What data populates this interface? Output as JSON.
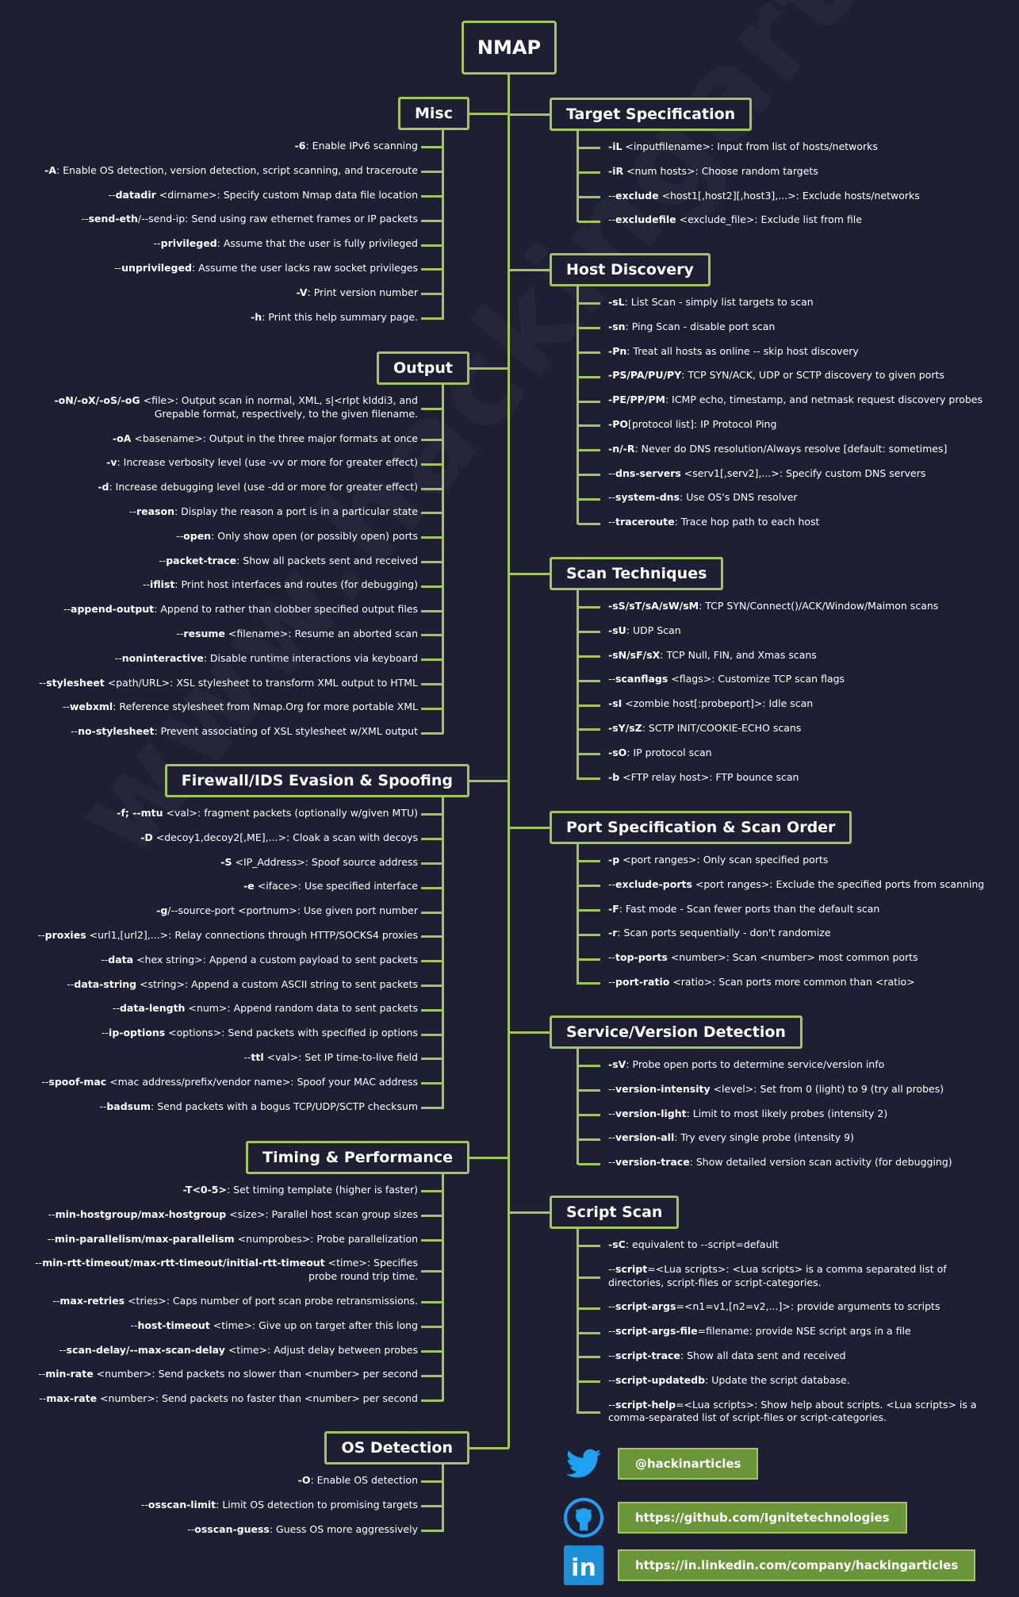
{
  "title": "NMAP",
  "watermark": "www.hackingarticles.in",
  "colors": {
    "background": "#1e1f33",
    "accent": "#a3c65a",
    "badge": "#6a9538"
  },
  "sections": [
    {
      "title": "Misc",
      "side": "left",
      "items": [
        [
          "",
          "-6",
          ": Enable IPv6 scanning"
        ],
        [
          "",
          "-A",
          ": Enable OS detection, version detection, script scanning, and traceroute"
        ],
        [
          "--",
          "datadir",
          " <dirname>: Specify custom Nmap data file location"
        ],
        [
          "--",
          "send-eth",
          "/--send-ip: Send using raw ethernet frames or IP packets"
        ],
        [
          "--",
          "privileged",
          ": Assume that the user is fully privileged"
        ],
        [
          "--",
          "unprivileged",
          ": Assume the user lacks raw socket privileges"
        ],
        [
          "",
          "-V",
          ": Print version number"
        ],
        [
          "",
          "-h",
          ": Print this help summary page."
        ]
      ]
    },
    {
      "title": "Output",
      "side": "left",
      "items": [
        [
          "",
          "-oN/-oX/-oS/-oG",
          " <file>: Output scan in normal, XML, s|<rIpt kIddi3, and Grepable format, respectively, to the given filename."
        ],
        [
          "",
          "-oA",
          " <basename>: Output in the three major formats at once"
        ],
        [
          "",
          "-v",
          ": Increase verbosity level (use -vv or more for greater effect)"
        ],
        [
          "",
          "-d",
          ": Increase debugging level (use -dd or more for greater effect)"
        ],
        [
          "--",
          "reason",
          ": Display the reason a port is in a particular state"
        ],
        [
          "--",
          "open",
          ": Only show open (or possibly open) ports"
        ],
        [
          "--",
          "packet-trace",
          ": Show all packets sent and received"
        ],
        [
          "--",
          "iflist",
          ": Print host interfaces and routes (for debugging)"
        ],
        [
          "--",
          "append-output",
          ": Append to rather than clobber specified output files"
        ],
        [
          "--",
          "resume",
          " <filename>: Resume an aborted scan"
        ],
        [
          "--",
          "noninteractive",
          ": Disable runtime interactions via keyboard"
        ],
        [
          "--",
          "stylesheet",
          " <path/URL>: XSL stylesheet to transform XML output to HTML"
        ],
        [
          "--",
          "webxml",
          ": Reference stylesheet from Nmap.Org for more portable XML"
        ],
        [
          "--",
          "no-stylesheet",
          ": Prevent associating of XSL stylesheet w/XML output"
        ]
      ]
    },
    {
      "title": "Firewall/IDS Evasion & Spoofing",
      "side": "left",
      "items": [
        [
          "",
          "-f; --mtu",
          " <val>: fragment packets (optionally w/given MTU)"
        ],
        [
          "",
          "-D",
          " <decoy1,decoy2[,ME],...>: Cloak a scan with decoys"
        ],
        [
          "",
          "-S",
          " <IP_Address>: Spoof source address"
        ],
        [
          "",
          "-e",
          " <iface>: Use specified interface"
        ],
        [
          "",
          "-g",
          "/--source-port <portnum>: Use given port number"
        ],
        [
          "--",
          "proxies",
          " <url1,[url2],...>: Relay connections through HTTP/SOCKS4 proxies"
        ],
        [
          "--",
          "data",
          " <hex string>: Append a custom payload to sent packets"
        ],
        [
          "--",
          "data-string",
          " <string>: Append a custom ASCII string to sent packets"
        ],
        [
          "--",
          "data-length",
          " <num>: Append random data to sent packets"
        ],
        [
          "--",
          "ip-options",
          " <options>: Send packets with specified ip options"
        ],
        [
          "--",
          "ttl",
          " <val>: Set IP time-to-live field"
        ],
        [
          "--",
          "spoof-mac",
          " <mac address/prefix/vendor name>: Spoof your MAC address"
        ],
        [
          "--",
          "badsum",
          ": Send packets with a bogus TCP/UDP/SCTP checksum"
        ]
      ]
    },
    {
      "title": "Timing & Performance",
      "side": "left",
      "items": [
        [
          "",
          "-T<0-5>",
          ": Set timing template (higher is faster)"
        ],
        [
          "--",
          "min-hostgroup/max-hostgroup",
          " <size>: Parallel host scan group sizes"
        ],
        [
          "--",
          "min-parallelism/max-parallelism",
          " <numprobes>: Probe parallelization"
        ],
        [
          "--",
          "min-rtt-timeout/max-rtt-timeout/initial-rtt-timeout",
          " <time>: Specifies  probe round trip time."
        ],
        [
          "--",
          "max-retries",
          " <tries>: Caps number of port scan probe retransmissions."
        ],
        [
          "--",
          "host-timeout",
          " <time>: Give up on target after this long"
        ],
        [
          "--",
          "scan-delay/--max-scan-delay",
          " <time>: Adjust delay between probes"
        ],
        [
          "--",
          "min-rate",
          " <number>: Send packets no slower than <number> per second"
        ],
        [
          "--",
          "max-rate",
          " <number>: Send packets no faster than <number> per second"
        ]
      ]
    },
    {
      "title": "OS Detection",
      "side": "left",
      "items": [
        [
          "",
          "-O",
          ": Enable OS detection"
        ],
        [
          "--",
          "osscan-limit",
          ": Limit OS detection to promising targets"
        ],
        [
          "--",
          "osscan-guess",
          ": Guess OS more aggressively"
        ]
      ]
    },
    {
      "title": "Target Specification",
      "side": "right",
      "items": [
        [
          "",
          "-iL",
          " <inputfilename>: Input from list of hosts/networks"
        ],
        [
          "",
          "-iR",
          " <num hosts>: Choose random targets"
        ],
        [
          "--",
          "exclude",
          " <host1[,host2][,host3],...>: Exclude hosts/networks"
        ],
        [
          "--",
          "excludefile",
          " <exclude_file>: Exclude list from file"
        ]
      ]
    },
    {
      "title": "Host Discovery",
      "side": "right",
      "items": [
        [
          "",
          "-sL",
          ": List Scan - simply list targets to scan"
        ],
        [
          "",
          "-sn",
          ": Ping Scan - disable port scan"
        ],
        [
          "",
          "-Pn",
          ": Treat all hosts as online -- skip host discovery"
        ],
        [
          "",
          "-PS/PA/PU/PY",
          ": TCP SYN/ACK, UDP or SCTP discovery to given ports"
        ],
        [
          "",
          "-PE/PP/PM",
          ": ICMP echo, timestamp, and netmask request discovery probes"
        ],
        [
          "",
          "-PO",
          "[protocol list]: IP Protocol Ping"
        ],
        [
          "",
          "-n/-R",
          ": Never do DNS resolution/Always resolve [default: sometimes]"
        ],
        [
          "--",
          "dns-servers",
          " <serv1[,serv2],...>: Specify custom DNS servers"
        ],
        [
          "--",
          "system-dns",
          ": Use OS's DNS resolver"
        ],
        [
          "--",
          "traceroute",
          ": Trace hop path to each host"
        ]
      ]
    },
    {
      "title": "Scan Techniques",
      "side": "right",
      "items": [
        [
          "",
          "-sS/sT/sA/sW/sM",
          ": TCP SYN/Connect()/ACK/Window/Maimon scans"
        ],
        [
          "",
          "-sU",
          ": UDP Scan"
        ],
        [
          "",
          "-sN/sF/sX",
          ": TCP Null, FIN, and Xmas scans"
        ],
        [
          "--",
          "scanflags",
          " <flags>: Customize TCP scan flags"
        ],
        [
          "",
          "-sI",
          " <zombie host[:probeport]>: Idle scan"
        ],
        [
          "",
          "-sY/sZ",
          ": SCTP INIT/COOKIE-ECHO scans"
        ],
        [
          "",
          "-sO",
          ": IP protocol scan"
        ],
        [
          "",
          "-b",
          " <FTP relay host>: FTP bounce scan"
        ]
      ]
    },
    {
      "title": "Port Specification & Scan Order",
      "side": "right",
      "items": [
        [
          "",
          "-p",
          " <port ranges>: Only scan specified ports"
        ],
        [
          "--",
          "exclude-ports",
          " <port ranges>: Exclude the specified ports from scanning"
        ],
        [
          "",
          "-F",
          ": Fast mode - Scan fewer ports than the default scan"
        ],
        [
          "",
          "-r",
          ": Scan ports sequentially - don't randomize"
        ],
        [
          "--",
          "top-ports",
          " <number>: Scan <number> most common ports"
        ],
        [
          "--",
          "port-ratio",
          " <ratio>: Scan ports more common than <ratio>"
        ]
      ]
    },
    {
      "title": "Service/Version Detection",
      "side": "right",
      "items": [
        [
          "",
          "-sV",
          ": Probe open ports to determine service/version info"
        ],
        [
          "--",
          "version-intensity",
          " <level>: Set from 0 (light) to 9 (try all probes)"
        ],
        [
          "--",
          "version-light",
          ": Limit to most likely probes (intensity 2)"
        ],
        [
          "--",
          "version-all",
          ": Try every single probe (intensity 9)"
        ],
        [
          "--",
          "version-trace",
          ": Show detailed version scan activity (for debugging)"
        ]
      ]
    },
    {
      "title": "Script Scan",
      "side": "right",
      "items": [
        [
          "",
          "-sC",
          ": equivalent to --script=default"
        ],
        [
          "--",
          "script",
          "=<Lua scripts>: <Lua scripts> is a comma separated list of directories, script-files or script-categories."
        ],
        [
          "--",
          "script-args",
          "=<n1=v1,[n2=v2,...]>: provide arguments to scripts"
        ],
        [
          "--",
          "script-args-file",
          "=filename: provide NSE script args in a file"
        ],
        [
          "--",
          "script-trace",
          ": Show all data sent and received"
        ],
        [
          "--",
          "script-updatedb",
          ": Update the script database."
        ],
        [
          "--",
          "script-help",
          "=<Lua scripts>: Show help about scripts. <Lua scripts> is a comma-separated list of script-files or  script-categories."
        ]
      ]
    }
  ],
  "social": [
    {
      "icon": "twitter-icon",
      "label": "@hackinarticles"
    },
    {
      "icon": "github-icon",
      "label": "https://github.com/Ignitetechnologies"
    },
    {
      "icon": "linkedin-icon",
      "label": "https://in.linkedin.com/company/hackingarticles"
    }
  ]
}
